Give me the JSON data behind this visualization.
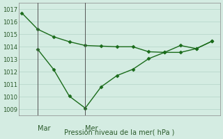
{
  "line1_x": [
    0,
    1,
    2,
    3,
    4,
    5,
    6,
    7,
    8,
    9,
    10,
    11,
    12
  ],
  "line1_y": [
    1016.7,
    1015.4,
    1014.8,
    1014.4,
    1014.1,
    1014.05,
    1014.0,
    1014.0,
    1013.6,
    1013.55,
    1014.1,
    1013.85,
    1014.45
  ],
  "line2_x": [
    1,
    2,
    3,
    4,
    5,
    6,
    7,
    8,
    9,
    10,
    11,
    12
  ],
  "line2_y": [
    1013.8,
    1012.2,
    1010.05,
    1009.1,
    1010.8,
    1011.7,
    1012.2,
    1013.05,
    1013.55,
    1013.55,
    1013.85,
    1014.45
  ],
  "line_color": "#1a6b1a",
  "bg_color": "#d4ece2",
  "grid_color": "#b8d8cc",
  "ylim": [
    1008.5,
    1017.5
  ],
  "yticks": [
    1009,
    1010,
    1011,
    1012,
    1013,
    1014,
    1015,
    1016,
    1017
  ],
  "xlabel": "Pression niveau de la mer( hPa )",
  "vline1_x": 1,
  "vline2_x": 4,
  "vline_label1": "Mar",
  "vline_label2": "Mer",
  "xlim": [
    -0.2,
    12.5
  ],
  "marker": "D",
  "markersize": 2.5,
  "linewidth": 1.0
}
